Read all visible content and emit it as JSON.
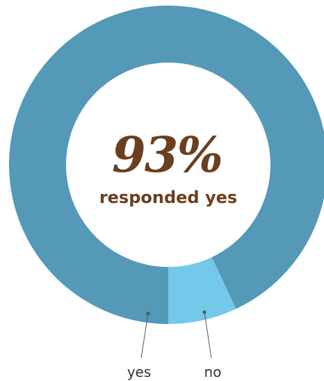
{
  "chart_data": {
    "type": "pie",
    "style": "donut",
    "slices": [
      {
        "label": "yes",
        "value": 93,
        "color": "#5499b8"
      },
      {
        "label": "no",
        "value": 7,
        "color": "#74c8ea"
      }
    ],
    "center_value": "93%",
    "center_label": "responded yes",
    "center_text_color": "#6b3f1d",
    "leader_line_color": "#555555",
    "label_color": "#333333"
  }
}
